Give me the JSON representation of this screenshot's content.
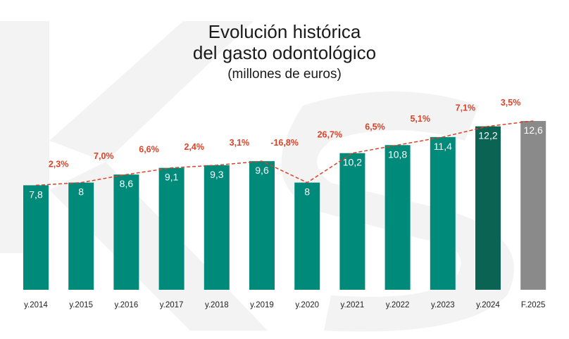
{
  "title": {
    "line1": "Evolución histórica",
    "line2": "del gasto odontológico",
    "subtitle": "(millones de euros)"
  },
  "chart_data": {
    "type": "bar",
    "title": "Evolución histórica del gasto odontológico",
    "subtitle": "(millones de euros)",
    "xlabel": "",
    "ylabel": "",
    "categories": [
      "y.2014",
      "y.2015",
      "y.2016",
      "y.2017",
      "y.2018",
      "y.2019",
      "y.2020",
      "y.2021",
      "y.2022",
      "y.2023",
      "y.2024",
      "F.2025"
    ],
    "values": [
      7.8,
      8,
      8.6,
      9.1,
      9.3,
      9.6,
      8,
      10.2,
      10.8,
      11.4,
      12.2,
      12.6
    ],
    "value_labels": [
      "7,8",
      "8",
      "8,6",
      "9,1",
      "9,3",
      "9,6",
      "8",
      "10,2",
      "10,8",
      "11,4",
      "12,2",
      "12,6"
    ],
    "growth_labels": [
      "2,3%",
      "7,0%",
      "6,6%",
      "2,4%",
      "3,1%",
      "-16,8%",
      "26,7%",
      "6,5%",
      "5,1%",
      "7,1%",
      "3,5%"
    ],
    "bar_colors": [
      "#008a7a",
      "#008a7a",
      "#008a7a",
      "#008a7a",
      "#008a7a",
      "#008a7a",
      "#008a7a",
      "#008a7a",
      "#008a7a",
      "#008a7a",
      "#0b6354",
      "#8a8a8a"
    ],
    "trend_line_color": "#d9432a",
    "growth_label_color": "#d9432a",
    "ylim": [
      0,
      12.6
    ],
    "grid": false,
    "legend": "none"
  }
}
